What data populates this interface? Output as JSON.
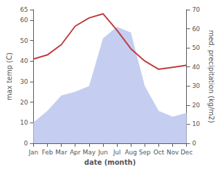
{
  "chart_data": {
    "type": "line",
    "xlabel": "date (month)",
    "ylabel": "max temp (C)",
    "y2label": "med. precipitation (kg/m2)",
    "categories": [
      "Jan",
      "Feb",
      "Mar",
      "Apr",
      "May",
      "Jun",
      "Jul",
      "Aug",
      "Sep",
      "Oct",
      "Nov",
      "Dec"
    ],
    "series": [
      {
        "type": "area",
        "axis": "y2",
        "color": "#c5cef0",
        "values": [
          11,
          17,
          25,
          27,
          30,
          55,
          61,
          58,
          30,
          17,
          14,
          16
        ]
      },
      {
        "type": "line",
        "color": "#c0393b",
        "values": [
          41,
          43,
          48,
          57,
          61,
          63,
          55,
          46,
          40,
          36,
          37,
          38
        ]
      }
    ],
    "ylim": [
      0,
      65
    ],
    "yticks": [
      0,
      10,
      20,
      30,
      40,
      50,
      60
    ],
    "y2lim": [
      0,
      70
    ],
    "y2ticks": [
      0,
      10,
      20,
      30,
      40,
      50,
      60,
      70
    ],
    "grid": false
  }
}
